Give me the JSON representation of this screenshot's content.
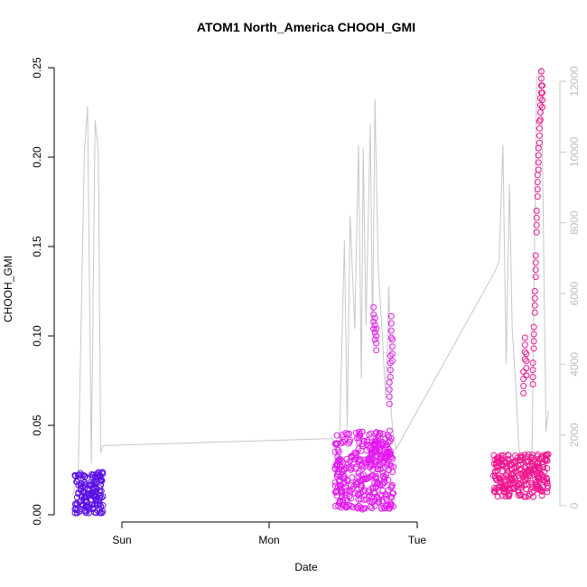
{
  "chart_data": {
    "type": "scatter",
    "title": "ATOM1 North_America CHOOH_GMI",
    "xlabel": "Date",
    "ylabel": "CHOOH_GMI",
    "x_ticks": [
      "Sun",
      "Mon",
      "Tue"
    ],
    "y_left": {
      "range": [
        0,
        0.25
      ],
      "ticks": [
        "0.00",
        "0.05",
        "0.10",
        "0.15",
        "0.20",
        "0.25"
      ]
    },
    "y_right": {
      "range": [
        0,
        12000
      ],
      "ticks": [
        "0",
        "2000",
        "4000",
        "6000",
        "8000",
        "10000",
        "12000"
      ],
      "color": "#c8c8c8"
    },
    "colors": {
      "seg1": "#5a10e8",
      "seg2": "#e418f0",
      "seg3": "#f0148e",
      "altitude_line": "#c8c8c8"
    },
    "altitude_line": [
      [
        0.2,
        300
      ],
      [
        0.32,
        800
      ],
      [
        0.45,
        10000
      ],
      [
        0.52,
        11300
      ],
      [
        0.6,
        1200
      ],
      [
        0.68,
        10900
      ],
      [
        0.75,
        10000
      ],
      [
        0.8,
        1500
      ],
      [
        0.85,
        1700
      ],
      [
        5.75,
        1900
      ],
      [
        5.88,
        1100
      ],
      [
        6.0,
        7500
      ],
      [
        6.06,
        2200
      ],
      [
        6.12,
        8200
      ],
      [
        6.22,
        5000
      ],
      [
        6.3,
        10200
      ],
      [
        6.36,
        3600
      ],
      [
        6.4,
        10100
      ],
      [
        6.46,
        5100
      ],
      [
        6.55,
        10800
      ],
      [
        6.6,
        4800
      ],
      [
        6.65,
        11500
      ],
      [
        6.72,
        6700
      ],
      [
        6.8,
        5000
      ],
      [
        6.88,
        3000
      ],
      [
        6.95,
        6200
      ],
      [
        7.0,
        2600
      ],
      [
        7.05,
        1900
      ],
      [
        7.1,
        1600
      ],
      [
        9.2,
        6600
      ],
      [
        9.3,
        6900
      ],
      [
        9.38,
        10200
      ],
      [
        9.45,
        4000
      ],
      [
        9.52,
        9100
      ],
      [
        9.58,
        5000
      ],
      [
        9.65,
        3500
      ],
      [
        9.72,
        1700
      ],
      [
        9.8,
        900
      ],
      [
        9.9,
        700
      ],
      [
        10.0,
        1200
      ],
      [
        10.1,
        12100
      ],
      [
        10.2,
        12400
      ],
      [
        10.3,
        2100
      ],
      [
        10.35,
        2700
      ]
    ],
    "segments": [
      {
        "x_range": [
          0.25,
          0.85
        ],
        "base": 0.012,
        "spread": 0.012,
        "n": 160,
        "color_key": "seg1"
      },
      {
        "x_range": [
          5.8,
          7.05
        ],
        "base": 0.025,
        "spread": 0.022,
        "n": 380,
        "color_key": "seg2",
        "spikes": [
          [
            6.62,
            0.116
          ],
          [
            6.65,
            0.11
          ],
          [
            6.68,
            0.104
          ],
          [
            7.0,
            0.111
          ],
          [
            7.02,
            0.098
          ],
          [
            6.98,
            0.089
          ],
          [
            6.96,
            0.074
          ]
        ]
      },
      {
        "x_range": [
          9.18,
          10.35
        ],
        "base": 0.022,
        "spread": 0.012,
        "n": 260,
        "color_key": "seg3",
        "spikes": [
          [
            9.85,
            0.099
          ],
          [
            9.88,
            0.09
          ],
          [
            9.82,
            0.08
          ],
          [
            10.2,
            0.248
          ],
          [
            10.22,
            0.24
          ],
          [
            10.18,
            0.233
          ],
          [
            10.16,
            0.22
          ],
          [
            10.14,
            0.205
          ],
          [
            10.12,
            0.19
          ],
          [
            10.1,
            0.17
          ],
          [
            10.08,
            0.145
          ],
          [
            10.06,
            0.125
          ],
          [
            10.04,
            0.105
          ],
          [
            10.02,
            0.085
          ]
        ]
      }
    ]
  }
}
